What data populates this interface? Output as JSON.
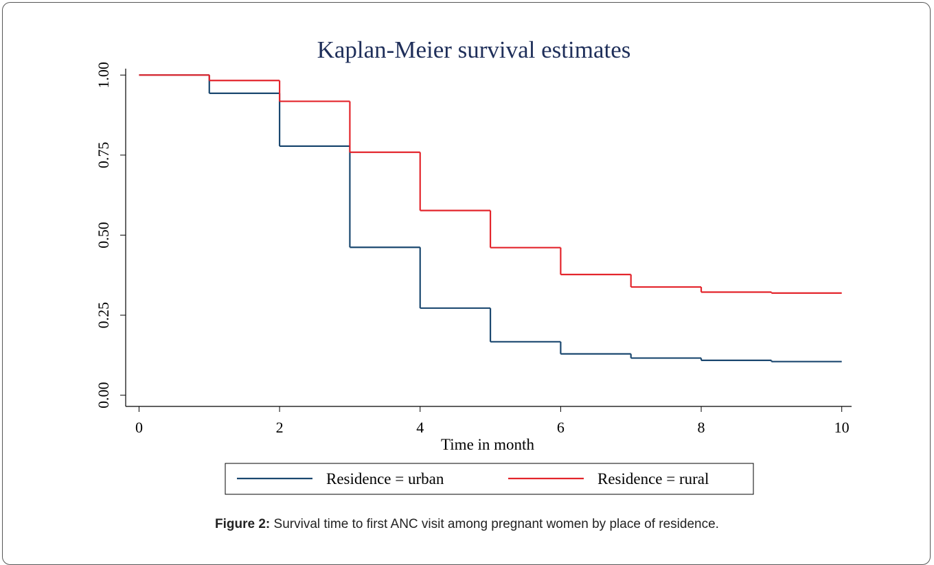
{
  "chart_data": {
    "type": "step",
    "title": "Kaplan-Meier survival estimates",
    "x_label": "Time in month",
    "x": [
      0,
      1,
      2,
      3,
      4,
      5,
      6,
      7,
      8,
      9,
      10
    ],
    "series": [
      {
        "name": "Residence = urban",
        "color": "#1a476f",
        "values": [
          1.0,
          0.943,
          0.778,
          0.462,
          0.272,
          0.167,
          0.129,
          0.116,
          0.109,
          0.105,
          0.105
        ]
      },
      {
        "name": "Residence = rural",
        "color": "#e3242b",
        "values": [
          1.0,
          0.983,
          0.918,
          0.759,
          0.577,
          0.461,
          0.377,
          0.338,
          0.322,
          0.319,
          0.319
        ]
      }
    ],
    "xlim": [
      -0.19,
      10.14
    ],
    "ylim": [
      -0.035,
      1.02
    ],
    "xticks": [
      0,
      2,
      4,
      6,
      8,
      10
    ],
    "yticks": [
      {
        "value": 0,
        "label": "0.00"
      },
      {
        "value": 0.25,
        "label": "0.25"
      },
      {
        "value": 0.5,
        "label": "0.50"
      },
      {
        "value": 0.75,
        "label": "0.75"
      },
      {
        "value": 1,
        "label": "1.00"
      }
    ],
    "legend": "bottom"
  },
  "caption": {
    "label": "Figure 2:",
    "text": " Survival time to first ANC visit among pregnant women by place of residence."
  }
}
